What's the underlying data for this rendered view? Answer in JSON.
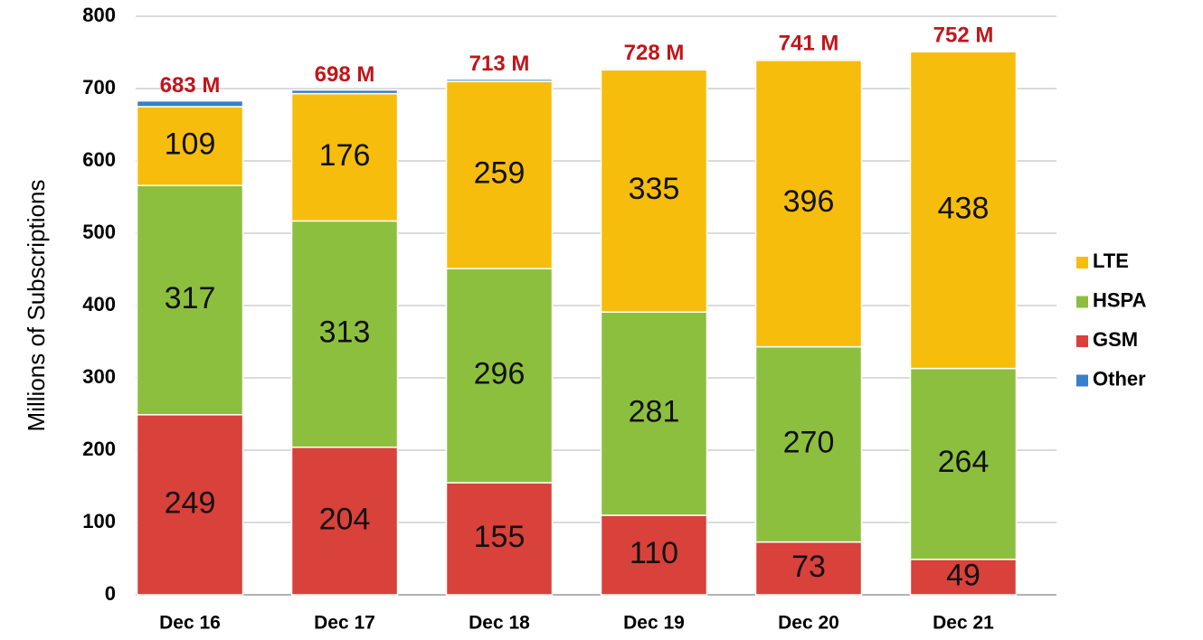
{
  "chart_data": {
    "type": "stacked_bar",
    "y_label": "Millions of Subscriptions",
    "categories": [
      "Dec 16",
      "Dec 17",
      "Dec 18",
      "Dec 19",
      "Dec 20",
      "Dec 21"
    ],
    "series": [
      {
        "name": "GSM",
        "color": "#d9413b",
        "values": [
          249,
          204,
          155,
          110,
          73,
          49
        ]
      },
      {
        "name": "HSPA",
        "color": "#8dbf3f",
        "values": [
          317,
          313,
          296,
          281,
          270,
          264
        ]
      },
      {
        "name": "LTE",
        "color": "#f6bd0c",
        "values": [
          109,
          176,
          259,
          335,
          396,
          438
        ]
      },
      {
        "name": "Other",
        "color": "#3b7fc9",
        "values": [
          8,
          5,
          3,
          2,
          2,
          1
        ]
      }
    ],
    "totals": {
      "values": [
        683,
        698,
        713,
        728,
        741,
        752
      ],
      "value_labels": [
        "683 M",
        "698 M",
        "713 M",
        "728 M",
        "741 M",
        "752 M"
      ]
    },
    "show_segment_labels": [
      "GSM",
      "HSPA",
      "LTE"
    ],
    "legend_order": [
      "LTE",
      "HSPA",
      "GSM",
      "Other"
    ],
    "ylim": [
      0,
      800
    ],
    "yticks": [
      0,
      100,
      200,
      300,
      400,
      500,
      600,
      700,
      800
    ],
    "grid": true
  }
}
